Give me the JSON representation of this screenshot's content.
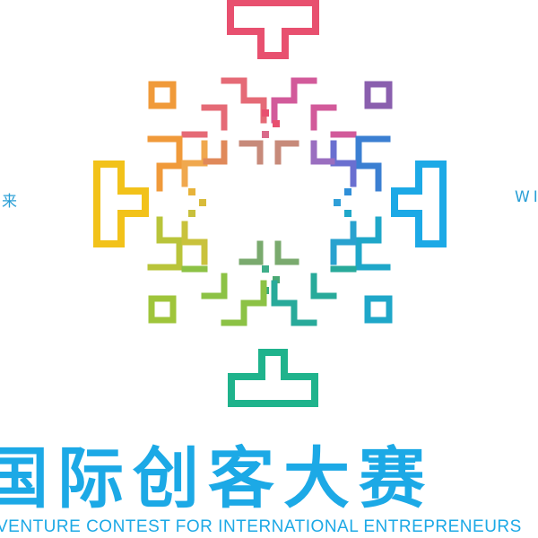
{
  "logo": {
    "side_left": "来",
    "side_right": "WI",
    "title_cn": "国际创客大赛",
    "title_en": "VENTURE CONTEST FOR INTERNATIONAL ENTREPRENEURS",
    "colors": {
      "pink": "#e8506f",
      "orange": "#f09a3a",
      "yellow": "#f2c21a",
      "green": "#2db58a",
      "blue": "#1ca9e6",
      "purple": "#8a5fae",
      "text": "#1ca9e6"
    }
  }
}
